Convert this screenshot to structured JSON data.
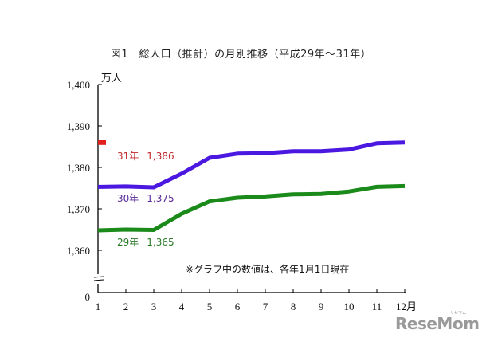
{
  "title": "図1　総人口（推計）の月別推移（平成29年～31年）",
  "note": "※グラフ中の数値は、各年1月1日現在",
  "watermark": "ReseMom",
  "watermark_sub": "リセマム",
  "axes": {
    "y_unit": "万人",
    "x_unit_suffix": "月",
    "y_ticks": [
      "1,400",
      "1,390",
      "1,380",
      "1,370",
      "1,360",
      "0"
    ],
    "x_ticks": [
      "1",
      "2",
      "3",
      "4",
      "5",
      "6",
      "7",
      "8",
      "9",
      "10",
      "11",
      "12月"
    ]
  },
  "annotations": {
    "y31": {
      "label": "31年",
      "value": "1,386",
      "color": "#c0282d"
    },
    "y30": {
      "label": "30年",
      "value": "1,375",
      "color": "#5a2a9a"
    },
    "y29": {
      "label": "29年",
      "value": "1,365",
      "color": "#2a7a2a"
    }
  },
  "chart_data": {
    "type": "line",
    "title": "図1　総人口（推計）の月別推移（平成29年～31年）",
    "xlabel": "月",
    "ylabel": "万人",
    "x": [
      1,
      2,
      3,
      4,
      5,
      6,
      7,
      8,
      9,
      10,
      11,
      12
    ],
    "ylim": [
      1360,
      1400
    ],
    "y_axis_break": true,
    "grid": false,
    "legend": "inline labels near left of each line",
    "series": [
      {
        "name": "31年",
        "color": "#e0201c",
        "values": [
          1386
        ]
      },
      {
        "name": "30年",
        "color": "#4a18e0",
        "values": [
          1375.3,
          1375.4,
          1375.2,
          1378.5,
          1382.3,
          1383.3,
          1383.4,
          1383.9,
          1383.9,
          1384.3,
          1385.8,
          1386.0
        ]
      },
      {
        "name": "29年",
        "color": "#1a8a1a",
        "values": [
          1364.8,
          1365.0,
          1364.9,
          1368.8,
          1371.8,
          1372.7,
          1373.0,
          1373.5,
          1373.6,
          1374.2,
          1375.3,
          1375.5
        ]
      }
    ],
    "annotations": [
      "31年 1,386",
      "30年 1,375",
      "29年 1,365",
      "※グラフ中の数値は、各年1月1日現在"
    ]
  }
}
